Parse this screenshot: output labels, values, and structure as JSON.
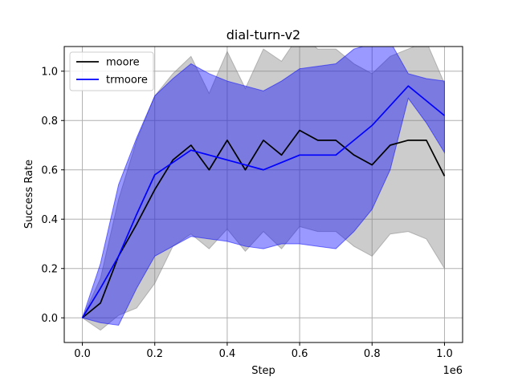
{
  "chart_data": {
    "type": "line",
    "title": "dial-turn-v2",
    "xlabel": "Step",
    "ylabel": "Success Rate",
    "x_offset_label": "1e6",
    "xlim": [
      -0.05,
      1.05
    ],
    "ylim": [
      -0.1,
      1.1
    ],
    "xticks": [
      0.0,
      0.2,
      0.4,
      0.6,
      0.8,
      1.0
    ],
    "xtick_labels": [
      "0.0",
      "0.2",
      "0.4",
      "0.6",
      "0.8",
      "1.0"
    ],
    "yticks": [
      0.0,
      0.2,
      0.4,
      0.6,
      0.8,
      1.0
    ],
    "ytick_labels": [
      "0.0",
      "0.2",
      "0.4",
      "0.6",
      "0.8",
      "1.0"
    ],
    "grid": true,
    "legend_position": "top-left",
    "x": [
      0.0,
      0.05,
      0.1,
      0.15,
      0.2,
      0.25,
      0.3,
      0.35,
      0.4,
      0.45,
      0.5,
      0.55,
      0.6,
      0.65,
      0.7,
      0.75,
      0.8,
      0.85,
      0.9,
      0.95,
      1.0
    ],
    "series": [
      {
        "name": "moore",
        "color": "#000000",
        "band_color": "#808080",
        "values": [
          0.0,
          0.06,
          0.25,
          0.38,
          0.52,
          0.64,
          0.7,
          0.6,
          0.72,
          0.6,
          0.72,
          0.66,
          0.76,
          0.72,
          0.72,
          0.66,
          0.62,
          0.7,
          0.72,
          0.72,
          0.575
        ],
        "upper": [
          0.0,
          0.16,
          0.48,
          0.72,
          0.9,
          0.99,
          1.06,
          0.91,
          1.08,
          0.93,
          1.09,
          1.04,
          1.15,
          1.09,
          1.09,
          1.03,
          0.99,
          1.06,
          1.09,
          1.12,
          0.95
        ],
        "lower": [
          0.0,
          -0.05,
          0.01,
          0.04,
          0.14,
          0.29,
          0.34,
          0.28,
          0.36,
          0.27,
          0.35,
          0.28,
          0.37,
          0.35,
          0.35,
          0.29,
          0.25,
          0.34,
          0.35,
          0.32,
          0.2
        ]
      },
      {
        "name": "trmoore",
        "color": "#0000ff",
        "band_color": "#0000ff",
        "values": [
          0.0,
          0.12,
          0.25,
          0.42,
          0.58,
          0.63,
          0.68,
          0.66,
          0.64,
          0.62,
          0.6,
          0.63,
          0.66,
          0.66,
          0.66,
          0.72,
          0.78,
          0.86,
          0.94,
          0.88,
          0.82
        ],
        "upper": [
          0.0,
          0.22,
          0.54,
          0.73,
          0.9,
          0.97,
          1.03,
          0.99,
          0.96,
          0.94,
          0.92,
          0.96,
          1.01,
          1.02,
          1.03,
          1.09,
          1.11,
          1.12,
          0.99,
          0.97,
          0.96
        ],
        "lower": [
          0.0,
          -0.02,
          -0.03,
          0.12,
          0.25,
          0.29,
          0.33,
          0.32,
          0.31,
          0.29,
          0.28,
          0.3,
          0.3,
          0.29,
          0.28,
          0.35,
          0.44,
          0.6,
          0.89,
          0.79,
          0.67
        ]
      }
    ]
  }
}
